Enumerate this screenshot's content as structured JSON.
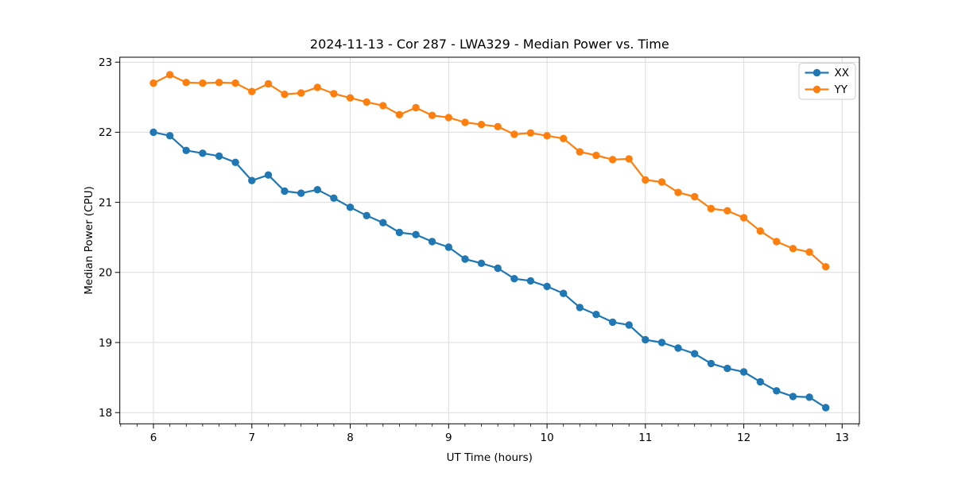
{
  "figure": {
    "background": "#ffffff"
  },
  "chart_data": {
    "type": "line",
    "title": "2024-11-13 - Cor 287 - LWA329 - Median Power vs. Time",
    "xlabel": "UT Time (hours)",
    "ylabel": "Median Power (CPU)",
    "xlim": [
      5.658,
      13.175
    ],
    "ylim": [
      17.84,
      23.07
    ],
    "xticks": [
      6,
      7,
      8,
      9,
      10,
      11,
      12,
      13
    ],
    "yticks": [
      18,
      19,
      20,
      21,
      22,
      23
    ],
    "x_minor_tick_step": 0.1667,
    "grid": true,
    "grid_color": "#dcdcdc",
    "axis_color": "#000000",
    "marker": "o",
    "legend_position": "upper right",
    "x": [
      6.0,
      6.167,
      6.333,
      6.5,
      6.667,
      6.833,
      7.0,
      7.167,
      7.333,
      7.5,
      7.667,
      7.833,
      8.0,
      8.167,
      8.333,
      8.5,
      8.667,
      8.833,
      9.0,
      9.167,
      9.333,
      9.5,
      9.667,
      9.833,
      10.0,
      10.167,
      10.333,
      10.5,
      10.667,
      10.833,
      11.0,
      11.167,
      11.333,
      11.5,
      11.667,
      11.833,
      12.0,
      12.167,
      12.333,
      12.5,
      12.667,
      12.833
    ],
    "series": [
      {
        "name": "XX",
        "color": "#1f77b4",
        "values": [
          22.0,
          21.95,
          21.74,
          21.7,
          21.66,
          21.57,
          21.31,
          21.39,
          21.16,
          21.13,
          21.18,
          21.06,
          20.93,
          20.81,
          20.71,
          20.57,
          20.54,
          20.44,
          20.36,
          20.19,
          20.13,
          20.06,
          19.91,
          19.88,
          19.8,
          19.7,
          19.5,
          19.4,
          19.29,
          19.25,
          19.04,
          19.0,
          18.92,
          18.84,
          18.7,
          18.63,
          18.58,
          18.44,
          18.31,
          18.23,
          18.22,
          18.07
        ]
      },
      {
        "name": "YY",
        "color": "#ff7f0e",
        "values": [
          22.7,
          22.82,
          22.71,
          22.7,
          22.71,
          22.7,
          22.58,
          22.69,
          22.54,
          22.56,
          22.64,
          22.55,
          22.49,
          22.43,
          22.38,
          22.25,
          22.35,
          22.24,
          22.21,
          22.14,
          22.11,
          22.08,
          21.97,
          21.99,
          21.95,
          21.91,
          21.72,
          21.67,
          21.61,
          21.62,
          21.32,
          21.29,
          21.14,
          21.08,
          20.91,
          20.88,
          20.78,
          20.59,
          20.44,
          20.34,
          20.29,
          20.08
        ]
      }
    ]
  }
}
